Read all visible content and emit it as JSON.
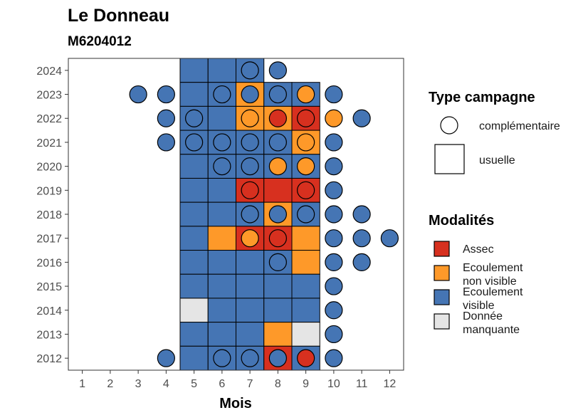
{
  "chart_data": {
    "type": "heatmap",
    "title": "Le Donneau",
    "subtitle": "M6204012",
    "xlabel": "Mois",
    "ylabel": "",
    "x_ticks": [
      1,
      2,
      3,
      4,
      5,
      6,
      7,
      8,
      9,
      10,
      11,
      12
    ],
    "y_ticks": [
      2012,
      2013,
      2014,
      2015,
      2016,
      2017,
      2018,
      2019,
      2020,
      2021,
      2022,
      2023,
      2024
    ],
    "xlim": [
      0.5,
      12.5
    ],
    "ylim": [
      2011.5,
      2024.5
    ],
    "grid": false,
    "colors": {
      "assec": "#d7301f",
      "ecoulement_non_visible": "#fe9929",
      "ecoulement_visible": "#4575b4",
      "donnee_manquante": "#e5e5e5"
    },
    "legend": {
      "placement": "right",
      "shape_title": "Type campagne",
      "shape_items": [
        {
          "shape": "circle",
          "label": "complémentaire"
        },
        {
          "shape": "square",
          "label": "usuelle"
        }
      ],
      "color_title": "Modalités",
      "color_items": [
        {
          "key": "assec",
          "label_lines": [
            "Assec"
          ]
        },
        {
          "key": "ecoulement_non_visible",
          "label_lines": [
            "Ecoulement",
            "non visible"
          ]
        },
        {
          "key": "ecoulement_visible",
          "label_lines": [
            "Ecoulement",
            "visible"
          ]
        },
        {
          "key": "donnee_manquante",
          "label_lines": [
            "Donnée",
            "manquante"
          ]
        }
      ]
    },
    "usuelle": [
      {
        "year": 2024,
        "month": 5,
        "mod": "ecoulement_visible"
      },
      {
        "year": 2024,
        "month": 6,
        "mod": "ecoulement_visible"
      },
      {
        "year": 2024,
        "month": 7,
        "mod": "ecoulement_visible"
      },
      {
        "year": 2023,
        "month": 5,
        "mod": "ecoulement_visible"
      },
      {
        "year": 2023,
        "month": 6,
        "mod": "ecoulement_visible"
      },
      {
        "year": 2023,
        "month": 7,
        "mod": "ecoulement_non_visible"
      },
      {
        "year": 2023,
        "month": 8,
        "mod": "ecoulement_visible"
      },
      {
        "year": 2023,
        "month": 9,
        "mod": "ecoulement_visible"
      },
      {
        "year": 2022,
        "month": 5,
        "mod": "ecoulement_visible"
      },
      {
        "year": 2022,
        "month": 6,
        "mod": "ecoulement_visible"
      },
      {
        "year": 2022,
        "month": 7,
        "mod": "ecoulement_non_visible"
      },
      {
        "year": 2022,
        "month": 8,
        "mod": "ecoulement_non_visible"
      },
      {
        "year": 2022,
        "month": 9,
        "mod": "assec"
      },
      {
        "year": 2021,
        "month": 5,
        "mod": "ecoulement_visible"
      },
      {
        "year": 2021,
        "month": 6,
        "mod": "ecoulement_visible"
      },
      {
        "year": 2021,
        "month": 7,
        "mod": "ecoulement_visible"
      },
      {
        "year": 2021,
        "month": 8,
        "mod": "ecoulement_visible"
      },
      {
        "year": 2021,
        "month": 9,
        "mod": "ecoulement_non_visible"
      },
      {
        "year": 2020,
        "month": 5,
        "mod": "ecoulement_visible"
      },
      {
        "year": 2020,
        "month": 6,
        "mod": "ecoulement_visible"
      },
      {
        "year": 2020,
        "month": 7,
        "mod": "ecoulement_visible"
      },
      {
        "year": 2020,
        "month": 8,
        "mod": "ecoulement_visible"
      },
      {
        "year": 2020,
        "month": 9,
        "mod": "ecoulement_visible"
      },
      {
        "year": 2019,
        "month": 5,
        "mod": "ecoulement_visible"
      },
      {
        "year": 2019,
        "month": 6,
        "mod": "ecoulement_visible"
      },
      {
        "year": 2019,
        "month": 7,
        "mod": "assec"
      },
      {
        "year": 2019,
        "month": 8,
        "mod": "assec"
      },
      {
        "year": 2019,
        "month": 9,
        "mod": "assec"
      },
      {
        "year": 2018,
        "month": 5,
        "mod": "ecoulement_visible"
      },
      {
        "year": 2018,
        "month": 6,
        "mod": "ecoulement_visible"
      },
      {
        "year": 2018,
        "month": 7,
        "mod": "ecoulement_visible"
      },
      {
        "year": 2018,
        "month": 8,
        "mod": "ecoulement_non_visible"
      },
      {
        "year": 2018,
        "month": 9,
        "mod": "ecoulement_visible"
      },
      {
        "year": 2017,
        "month": 5,
        "mod": "ecoulement_visible"
      },
      {
        "year": 2017,
        "month": 6,
        "mod": "ecoulement_non_visible"
      },
      {
        "year": 2017,
        "month": 7,
        "mod": "assec"
      },
      {
        "year": 2017,
        "month": 8,
        "mod": "assec"
      },
      {
        "year": 2017,
        "month": 9,
        "mod": "ecoulement_non_visible"
      },
      {
        "year": 2016,
        "month": 5,
        "mod": "ecoulement_visible"
      },
      {
        "year": 2016,
        "month": 6,
        "mod": "ecoulement_visible"
      },
      {
        "year": 2016,
        "month": 7,
        "mod": "ecoulement_visible"
      },
      {
        "year": 2016,
        "month": 8,
        "mod": "ecoulement_visible"
      },
      {
        "year": 2016,
        "month": 9,
        "mod": "ecoulement_non_visible"
      },
      {
        "year": 2015,
        "month": 5,
        "mod": "ecoulement_visible"
      },
      {
        "year": 2015,
        "month": 6,
        "mod": "ecoulement_visible"
      },
      {
        "year": 2015,
        "month": 7,
        "mod": "ecoulement_visible"
      },
      {
        "year": 2015,
        "month": 8,
        "mod": "ecoulement_visible"
      },
      {
        "year": 2015,
        "month": 9,
        "mod": "ecoulement_visible"
      },
      {
        "year": 2014,
        "month": 5,
        "mod": "donnee_manquante"
      },
      {
        "year": 2014,
        "month": 6,
        "mod": "ecoulement_visible"
      },
      {
        "year": 2014,
        "month": 7,
        "mod": "ecoulement_visible"
      },
      {
        "year": 2014,
        "month": 8,
        "mod": "ecoulement_visible"
      },
      {
        "year": 2014,
        "month": 9,
        "mod": "ecoulement_visible"
      },
      {
        "year": 2013,
        "month": 5,
        "mod": "ecoulement_visible"
      },
      {
        "year": 2013,
        "month": 6,
        "mod": "ecoulement_visible"
      },
      {
        "year": 2013,
        "month": 7,
        "mod": "ecoulement_visible"
      },
      {
        "year": 2013,
        "month": 8,
        "mod": "ecoulement_non_visible"
      },
      {
        "year": 2013,
        "month": 9,
        "mod": "donnee_manquante"
      },
      {
        "year": 2012,
        "month": 5,
        "mod": "ecoulement_visible"
      },
      {
        "year": 2012,
        "month": 6,
        "mod": "ecoulement_visible"
      },
      {
        "year": 2012,
        "month": 7,
        "mod": "ecoulement_visible"
      },
      {
        "year": 2012,
        "month": 8,
        "mod": "assec"
      },
      {
        "year": 2012,
        "month": 9,
        "mod": "ecoulement_visible"
      }
    ],
    "complementaire": [
      {
        "year": 2024,
        "month": 7,
        "mod": "ecoulement_visible"
      },
      {
        "year": 2024,
        "month": 8,
        "mod": "ecoulement_visible"
      },
      {
        "year": 2023,
        "month": 3,
        "mod": "ecoulement_visible"
      },
      {
        "year": 2023,
        "month": 4,
        "mod": "ecoulement_visible"
      },
      {
        "year": 2023,
        "month": 6,
        "mod": "ecoulement_visible"
      },
      {
        "year": 2023,
        "month": 7,
        "mod": "ecoulement_visible"
      },
      {
        "year": 2023,
        "month": 8,
        "mod": "ecoulement_visible"
      },
      {
        "year": 2023,
        "month": 9,
        "mod": "ecoulement_non_visible"
      },
      {
        "year": 2023,
        "month": 10,
        "mod": "ecoulement_visible"
      },
      {
        "year": 2022,
        "month": 4,
        "mod": "ecoulement_visible"
      },
      {
        "year": 2022,
        "month": 5,
        "mod": "ecoulement_visible"
      },
      {
        "year": 2022,
        "month": 7,
        "mod": "ecoulement_non_visible"
      },
      {
        "year": 2022,
        "month": 8,
        "mod": "assec"
      },
      {
        "year": 2022,
        "month": 9,
        "mod": "assec"
      },
      {
        "year": 2022,
        "month": 10,
        "mod": "ecoulement_non_visible"
      },
      {
        "year": 2022,
        "month": 11,
        "mod": "ecoulement_visible"
      },
      {
        "year": 2021,
        "month": 4,
        "mod": "ecoulement_visible"
      },
      {
        "year": 2021,
        "month": 5,
        "mod": "ecoulement_visible"
      },
      {
        "year": 2021,
        "month": 6,
        "mod": "ecoulement_visible"
      },
      {
        "year": 2021,
        "month": 7,
        "mod": "ecoulement_visible"
      },
      {
        "year": 2021,
        "month": 8,
        "mod": "ecoulement_visible"
      },
      {
        "year": 2021,
        "month": 9,
        "mod": "ecoulement_non_visible"
      },
      {
        "year": 2021,
        "month": 10,
        "mod": "ecoulement_visible"
      },
      {
        "year": 2020,
        "month": 6,
        "mod": "ecoulement_visible"
      },
      {
        "year": 2020,
        "month": 7,
        "mod": "ecoulement_visible"
      },
      {
        "year": 2020,
        "month": 8,
        "mod": "ecoulement_non_visible"
      },
      {
        "year": 2020,
        "month": 9,
        "mod": "ecoulement_non_visible"
      },
      {
        "year": 2020,
        "month": 10,
        "mod": "ecoulement_visible"
      },
      {
        "year": 2019,
        "month": 7,
        "mod": "assec"
      },
      {
        "year": 2019,
        "month": 9,
        "mod": "assec"
      },
      {
        "year": 2019,
        "month": 10,
        "mod": "ecoulement_visible"
      },
      {
        "year": 2018,
        "month": 7,
        "mod": "ecoulement_visible"
      },
      {
        "year": 2018,
        "month": 8,
        "mod": "ecoulement_visible"
      },
      {
        "year": 2018,
        "month": 9,
        "mod": "ecoulement_visible"
      },
      {
        "year": 2018,
        "month": 10,
        "mod": "ecoulement_visible"
      },
      {
        "year": 2018,
        "month": 11,
        "mod": "ecoulement_visible"
      },
      {
        "year": 2017,
        "month": 7,
        "mod": "ecoulement_non_visible"
      },
      {
        "year": 2017,
        "month": 8,
        "mod": "assec"
      },
      {
        "year": 2017,
        "month": 10,
        "mod": "ecoulement_visible"
      },
      {
        "year": 2017,
        "month": 11,
        "mod": "ecoulement_visible"
      },
      {
        "year": 2017,
        "month": 12,
        "mod": "ecoulement_visible"
      },
      {
        "year": 2016,
        "month": 8,
        "mod": "ecoulement_visible"
      },
      {
        "year": 2016,
        "month": 10,
        "mod": "ecoulement_visible"
      },
      {
        "year": 2016,
        "month": 11,
        "mod": "ecoulement_visible"
      },
      {
        "year": 2015,
        "month": 10,
        "mod": "ecoulement_visible"
      },
      {
        "year": 2014,
        "month": 10,
        "mod": "ecoulement_visible"
      },
      {
        "year": 2013,
        "month": 10,
        "mod": "ecoulement_visible"
      },
      {
        "year": 2012,
        "month": 4,
        "mod": "ecoulement_visible"
      },
      {
        "year": 2012,
        "month": 6,
        "mod": "ecoulement_visible"
      },
      {
        "year": 2012,
        "month": 7,
        "mod": "ecoulement_visible"
      },
      {
        "year": 2012,
        "month": 8,
        "mod": "ecoulement_visible"
      },
      {
        "year": 2012,
        "month": 9,
        "mod": "assec"
      },
      {
        "year": 2012,
        "month": 10,
        "mod": "ecoulement_visible"
      }
    ]
  }
}
